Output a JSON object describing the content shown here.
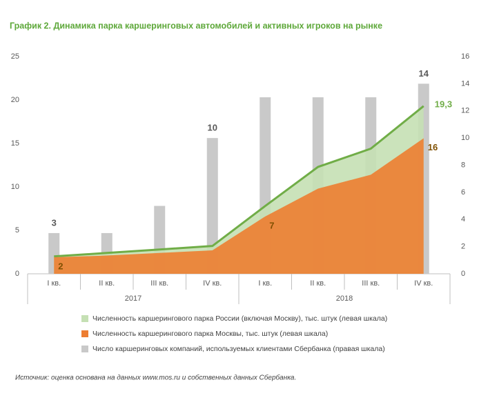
{
  "chart_data": {
    "type": "combo",
    "title": "График 2. Динамика парка каршеринговых автомобилей и активных игроков на рынке",
    "categories": [
      "I кв.",
      "II кв.",
      "III кв.",
      "IV кв.",
      "I кв.",
      "II кв.",
      "III кв.",
      "IV кв."
    ],
    "x_groups": [
      "2017",
      "2018"
    ],
    "ylim": [
      0,
      25
    ],
    "yticks": [
      0,
      5,
      10,
      15,
      20,
      25
    ],
    "y2lim": [
      0,
      16
    ],
    "y2ticks": [
      0,
      2,
      4,
      6,
      8,
      10,
      12,
      14,
      16
    ],
    "grid": false,
    "series": [
      {
        "name": "Численность каршерингового парка России (включая Москву), тыс. штук (левая шкала)",
        "type": "area",
        "color": "#c5e0b4",
        "line_color": "#70ad47",
        "values": [
          2.0,
          2.4,
          2.8,
          3.2,
          7.8,
          12.3,
          14.4,
          19.3
        ],
        "value_labels": [
          null,
          null,
          null,
          null,
          null,
          null,
          null,
          "19,3"
        ]
      },
      {
        "name": "Численность каршерингового парка Москвы, тыс. штук (левая шкала)",
        "type": "area",
        "color": "#ed7d31",
        "values": [
          1.9,
          2.1,
          2.4,
          2.7,
          6.6,
          9.8,
          11.4,
          15.6
        ],
        "value_labels": [
          "2",
          null,
          null,
          null,
          "7",
          null,
          null,
          "16"
        ]
      },
      {
        "name": "Число каршеринговых компаний, используемых клиентами Сбербанка (правая шкала)",
        "type": "bar",
        "axis": "y2",
        "color": "#c9c9c9",
        "values": [
          3,
          3,
          5,
          10,
          13,
          13,
          13,
          14
        ],
        "value_labels": [
          "3",
          null,
          null,
          "10",
          null,
          null,
          null,
          "14"
        ]
      }
    ],
    "source": "Источник: оценка основана на данных www.mos.ru и собственных данных Сбербанка."
  }
}
